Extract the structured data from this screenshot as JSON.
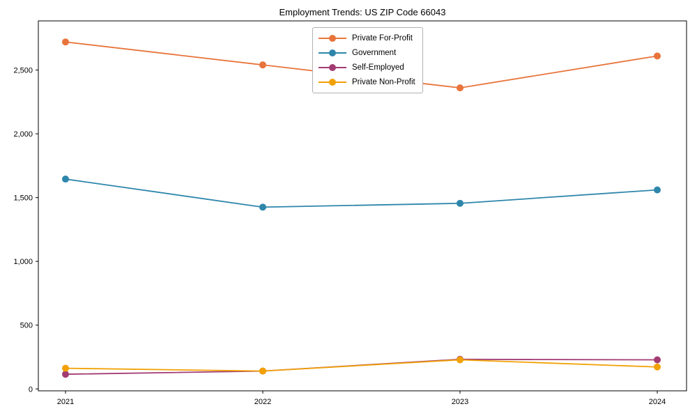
{
  "title": "Employment Trends: US ZIP Code 66043",
  "chart_data": {
    "type": "line",
    "title": "Employment Trends: US ZIP Code 66043",
    "x": [
      "2021",
      "2022",
      "2023",
      "2024"
    ],
    "series": [
      {
        "name": "Private For-Profit",
        "color": "#E8743B",
        "values": [
          2720,
          2540,
          2360,
          2610
        ]
      },
      {
        "name": "Government",
        "color": "#2E86AB",
        "values": [
          1645,
          1425,
          1455,
          1560
        ]
      },
      {
        "name": "Self-Employed",
        "color": "#A23B72",
        "values": [
          115,
          140,
          232,
          228
        ]
      },
      {
        "name": "Private Non-Profit",
        "color": "#F2A104",
        "values": [
          162,
          140,
          228,
          172
        ]
      }
    ],
    "xlabel": "",
    "ylabel": "",
    "ylim": [
      -15,
      2885
    ],
    "yticks": [
      0,
      500,
      1000,
      1500,
      2000,
      2500
    ],
    "grid": false,
    "legend_position": "top-center",
    "marker": "circle",
    "frame": true
  }
}
